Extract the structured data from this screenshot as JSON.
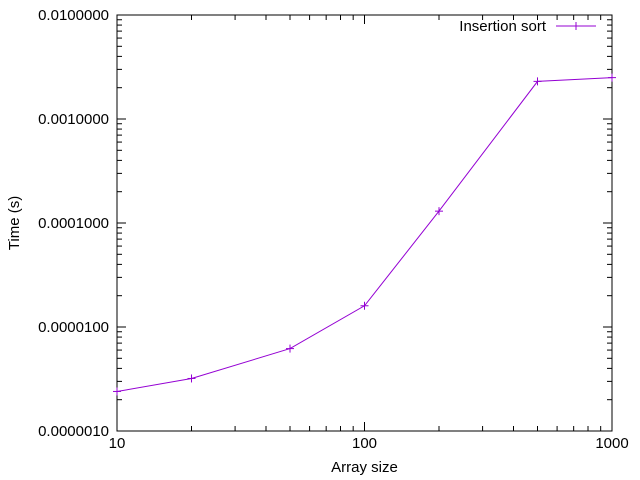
{
  "chart_data": {
    "type": "line",
    "title": "",
    "xlabel": "Array size",
    "ylabel": "Time (s)",
    "x_scale": "log",
    "y_scale": "log",
    "xlim": [
      10,
      1000
    ],
    "ylim": [
      1e-06,
      0.01
    ],
    "x_ticks": [
      {
        "value": 10,
        "label": "10"
      },
      {
        "value": 100,
        "label": "100"
      },
      {
        "value": 1000,
        "label": "1000"
      }
    ],
    "y_ticks": [
      {
        "value": 1e-06,
        "label": "0.0000010"
      },
      {
        "value": 1e-05,
        "label": "0.0000100"
      },
      {
        "value": 0.0001,
        "label": "0.0001000"
      },
      {
        "value": 0.001,
        "label": "0.0010000"
      },
      {
        "value": 0.01,
        "label": "0.0100000"
      }
    ],
    "grid": false,
    "legend_position": "top-right",
    "series": [
      {
        "name": "Insertion sort",
        "color": "#9400d3",
        "marker": "plus",
        "x": [
          10,
          20,
          50,
          100,
          200,
          500,
          1000
        ],
        "y": [
          2.4e-06,
          3.2e-06,
          6.2e-06,
          1.6e-05,
          0.00013,
          0.0023,
          0.0025
        ]
      }
    ]
  }
}
